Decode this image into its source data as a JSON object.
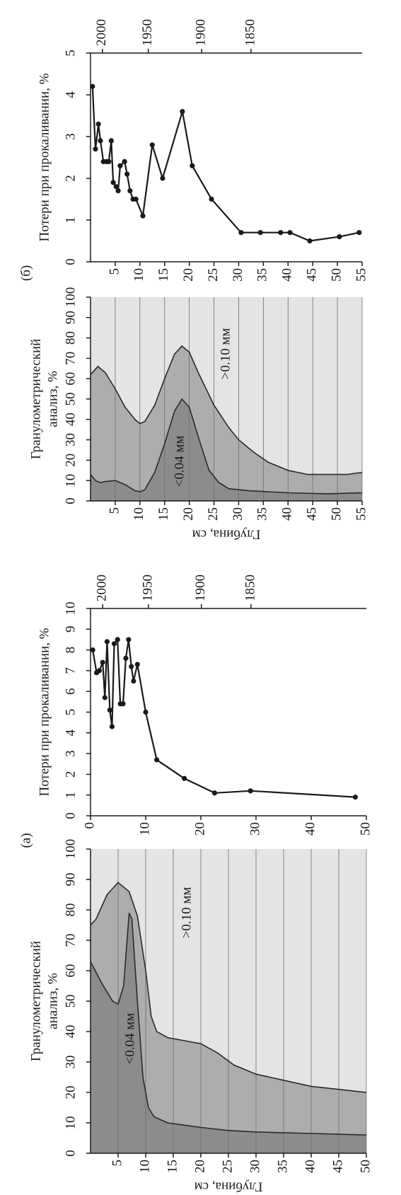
{
  "chart_data": [
    {
      "type": "area",
      "ylabel": [
        "Гранулометрический",
        "анализ, %"
      ],
      "xlabel": "Глубина, см",
      "xlim": [
        0,
        55
      ],
      "ylim": [
        0,
        100
      ],
      "xticks": [
        5,
        10,
        15,
        20,
        25,
        30,
        35,
        40,
        45,
        50,
        55
      ],
      "yticks": [
        0,
        10,
        20,
        30,
        40,
        50,
        60,
        70,
        80,
        90,
        100
      ],
      "grid": true,
      "background": "#e4e4e4",
      "series": [
        {
          "color": "#adadad",
          "x": [
            0,
            1.5,
            3,
            5,
            7,
            9,
            10,
            11,
            13,
            15,
            17,
            18.5,
            20,
            22,
            25,
            28,
            30,
            33,
            36,
            40,
            44,
            48,
            52,
            55
          ],
          "values": [
            62,
            66,
            63,
            55,
            46,
            40,
            38,
            39,
            47,
            60,
            72,
            76,
            73,
            62,
            47,
            36,
            30,
            24,
            19,
            15,
            13,
            13,
            13,
            14
          ]
        },
        {
          "color": "#8c8c8c",
          "x": [
            0,
            1,
            2,
            3,
            5,
            7,
            9,
            10,
            11,
            13,
            15,
            17,
            18.5,
            20,
            22,
            24,
            26,
            28,
            32,
            40,
            48,
            55
          ],
          "values": [
            13,
            10,
            9,
            9.5,
            10,
            8,
            5,
            4.5,
            5.5,
            14,
            28,
            44,
            50,
            46,
            30,
            15,
            9,
            6,
            5,
            4,
            3.5,
            4
          ]
        }
      ],
      "annotations": [
        ">0.10 мм",
        "<0.04 мм"
      ]
    },
    {
      "type": "line",
      "panel_label": "(б)",
      "ylabel": "Потери при прокаливании, %",
      "xlim": [
        0,
        55
      ],
      "ylim": [
        0,
        5
      ],
      "xticks": [
        5,
        10,
        15,
        20,
        25,
        30,
        35,
        40,
        45,
        50,
        55
      ],
      "yticks": [
        0,
        1,
        2,
        3,
        4,
        5
      ],
      "x2ticks": [
        {
          "value": 2.4,
          "label": "2000"
        },
        {
          "value": 11.7,
          "label": "1950"
        },
        {
          "value": 22.5,
          "label": "1900"
        },
        {
          "value": 32.5,
          "label": "1850"
        }
      ],
      "color": "#1a1a1a",
      "x": [
        0.4,
        1,
        1.6,
        2,
        2.6,
        3.2,
        3.7,
        4.2,
        4.6,
        5.2,
        5.6,
        6,
        6.9,
        7.4,
        8,
        8.6,
        9.2,
        10.6,
        12.5,
        14.6,
        18.6,
        20.6,
        24.5,
        30.5,
        34.4,
        38.5,
        40.4,
        44.4,
        50.4,
        54.4
      ],
      "values": [
        4.2,
        2.7,
        3.3,
        2.9,
        2.4,
        2.4,
        2.4,
        2.9,
        1.9,
        1.8,
        1.7,
        2.3,
        2.4,
        2.1,
        1.7,
        1.5,
        1.5,
        1.1,
        2.8,
        2.0,
        3.6,
        2.3,
        1.5,
        0.7,
        0.7,
        0.7,
        0.7,
        0.5,
        0.6,
        0.7
      ]
    },
    {
      "type": "area",
      "ylabel": [
        "Гранулометрический",
        "анализ, %"
      ],
      "xlabel": "Глубина, см",
      "xlim": [
        0,
        50
      ],
      "ylim": [
        0,
        100
      ],
      "xticks": [
        5,
        10,
        15,
        20,
        25,
        30,
        35,
        40,
        45,
        50
      ],
      "yticks": [
        0,
        10,
        20,
        30,
        40,
        50,
        60,
        70,
        80,
        90,
        100
      ],
      "grid": true,
      "background": "#e4e4e4",
      "series": [
        {
          "color": "#adadad",
          "x": [
            0,
            1,
            3,
            5,
            7,
            8.5,
            10,
            11,
            12,
            14,
            17,
            20,
            23,
            26,
            30,
            35,
            40,
            45,
            50
          ],
          "values": [
            75,
            77,
            85,
            89,
            86,
            78,
            60,
            45,
            40,
            38,
            37,
            36,
            33,
            29,
            26,
            24,
            22,
            21,
            20
          ]
        },
        {
          "color": "#8c8c8c",
          "x": [
            0,
            2,
            4,
            5,
            6,
            7,
            7.5,
            8.5,
            9.5,
            10.5,
            11.5,
            14,
            20,
            25,
            30,
            40,
            50
          ],
          "values": [
            63,
            56,
            50,
            49,
            55,
            79,
            77,
            50,
            25,
            15,
            12,
            10,
            8.5,
            7.5,
            7,
            6.5,
            6
          ]
        }
      ],
      "annotations": [
        ">0.10 мм",
        "<0.04 мм"
      ]
    },
    {
      "type": "line",
      "panel_label": "(а)",
      "ylabel": "Потери при прокаливании, %",
      "xlim": [
        0,
        50
      ],
      "ylim": [
        0,
        10
      ],
      "xticks": [
        0,
        10,
        20,
        30,
        40,
        50
      ],
      "yticks": [
        0,
        1,
        2,
        3,
        4,
        5,
        6,
        7,
        8,
        9,
        10
      ],
      "x2ticks": [
        {
          "value": 2.2,
          "label": "2000"
        },
        {
          "value": 10.5,
          "label": "1950"
        },
        {
          "value": 20.1,
          "label": "1900"
        },
        {
          "value": 29.1,
          "label": "1850"
        }
      ],
      "color": "#1a1a1a",
      "x": [
        0.4,
        1.1,
        1.6,
        2.2,
        2.6,
        3,
        3.5,
        3.9,
        4.3,
        4.9,
        5.4,
        5.9,
        6.4,
        6.9,
        7.4,
        7.8,
        8.5,
        10,
        12,
        17,
        22.5,
        29,
        48
      ],
      "values": [
        8.0,
        6.9,
        7.0,
        7.4,
        5.7,
        8.4,
        5.1,
        4.3,
        8.3,
        8.5,
        5.4,
        5.4,
        7.6,
        8.5,
        7.2,
        6.5,
        7.3,
        5.0,
        2.7,
        1.8,
        1.1,
        1.2,
        0.9
      ]
    }
  ]
}
